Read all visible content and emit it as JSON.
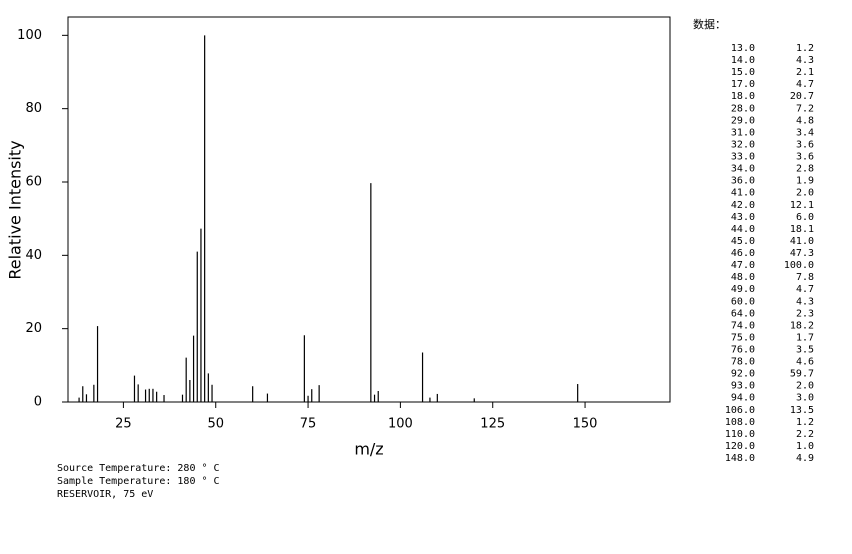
{
  "chart_data": {
    "type": "bar",
    "x_label": "m/z",
    "y_label": "Relative Intensity",
    "x": [
      13,
      14,
      15,
      17,
      18,
      28,
      29,
      31,
      32,
      33,
      34,
      36,
      41,
      42,
      43,
      44,
      45,
      46,
      47,
      48,
      49,
      60,
      64,
      74,
      75,
      76,
      78,
      92,
      93,
      94,
      106,
      108,
      110,
      120,
      148
    ],
    "values": [
      1.2,
      4.3,
      2.1,
      4.7,
      20.7,
      7.2,
      4.8,
      3.4,
      3.6,
      3.6,
      2.8,
      1.9,
      2.0,
      12.1,
      6.0,
      18.1,
      41.0,
      47.3,
      100.0,
      7.8,
      4.7,
      4.3,
      2.3,
      18.2,
      1.7,
      3.5,
      4.6,
      59.7,
      2.0,
      3.0,
      13.5,
      1.2,
      2.2,
      1.0,
      4.9
    ],
    "color": "#000000",
    "xlim": [
      10,
      173
    ],
    "ylim": [
      0,
      105
    ],
    "xticks": [
      25,
      50,
      75,
      100,
      125,
      150
    ],
    "yticks": [
      0,
      20,
      40,
      60,
      80,
      100
    ],
    "notes": [
      "Source Temperature: 280 ° C",
      "Sample Temperature: 180 ° C",
      "RESERVOIR, 75 eV"
    ]
  },
  "peak_table": {
    "title": "数据：",
    "rows": [
      [
        "13.0",
        "1.2"
      ],
      [
        "14.0",
        "4.3"
      ],
      [
        "15.0",
        "2.1"
      ],
      [
        "17.0",
        "4.7"
      ],
      [
        "18.0",
        "20.7"
      ],
      [
        "28.0",
        "7.2"
      ],
      [
        "29.0",
        "4.8"
      ],
      [
        "31.0",
        "3.4"
      ],
      [
        "32.0",
        "3.6"
      ],
      [
        "33.0",
        "3.6"
      ],
      [
        "34.0",
        "2.8"
      ],
      [
        "36.0",
        "1.9"
      ],
      [
        "41.0",
        "2.0"
      ],
      [
        "42.0",
        "12.1"
      ],
      [
        "43.0",
        "6.0"
      ],
      [
        "44.0",
        "18.1"
      ],
      [
        "45.0",
        "41.0"
      ],
      [
        "46.0",
        "47.3"
      ],
      [
        "47.0",
        "100.0"
      ],
      [
        "48.0",
        "7.8"
      ],
      [
        "49.0",
        "4.7"
      ],
      [
        "60.0",
        "4.3"
      ],
      [
        "64.0",
        "2.3"
      ],
      [
        "74.0",
        "18.2"
      ],
      [
        "75.0",
        "1.7"
      ],
      [
        "76.0",
        "3.5"
      ],
      [
        "78.0",
        "4.6"
      ],
      [
        "92.0",
        "59.7"
      ],
      [
        "93.0",
        "2.0"
      ],
      [
        "94.0",
        "3.0"
      ],
      [
        "106.0",
        "13.5"
      ],
      [
        "108.0",
        "1.2"
      ],
      [
        "110.0",
        "2.2"
      ],
      [
        "120.0",
        "1.0"
      ],
      [
        "148.0",
        "4.9"
      ]
    ]
  }
}
